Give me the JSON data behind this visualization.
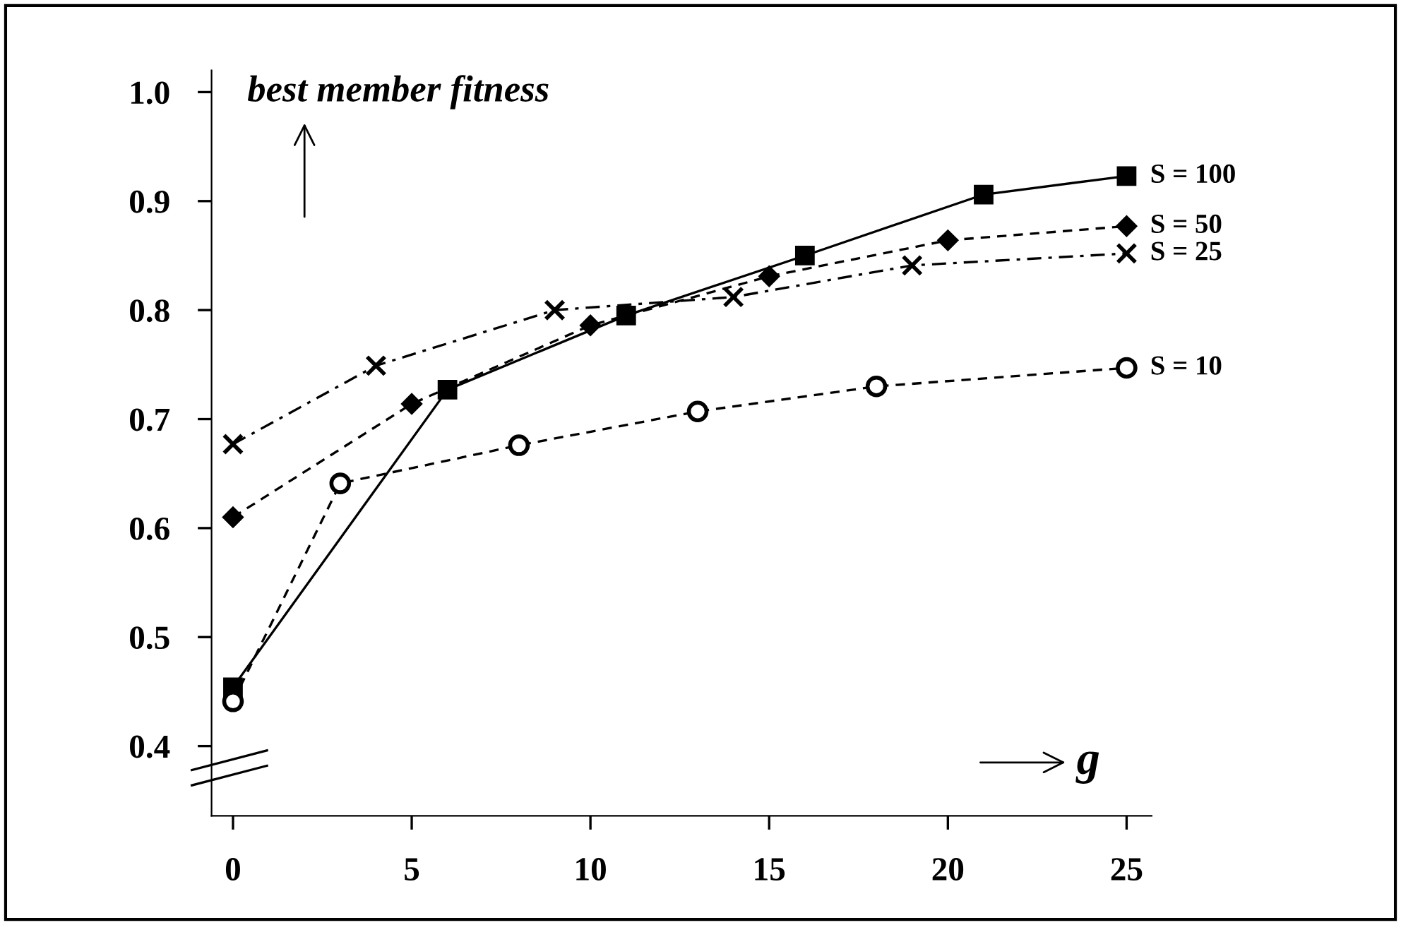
{
  "chart_data": {
    "type": "line",
    "ylabel": "best member fitness",
    "xlabel": "g",
    "xlim": [
      -0.6,
      25.7
    ],
    "ylim": [
      0.336,
      1.02
    ],
    "xticks": [
      0,
      5,
      10,
      15,
      20,
      25
    ],
    "yticks": [
      0.4,
      0.5,
      0.6,
      0.7,
      0.8,
      0.9,
      {
        "value": 1.0,
        "label": "1.0"
      }
    ],
    "grid": false,
    "legend": false,
    "series": [
      {
        "name": "S = 100",
        "color": "#000000",
        "marker": "square",
        "line_style": "solid",
        "x": [
          0,
          6,
          11,
          16,
          21,
          25
        ],
        "values": [
          0.454,
          0.727,
          0.795,
          0.85,
          0.906,
          0.923
        ]
      },
      {
        "name": "S = 50",
        "color": "#000000",
        "marker": "diamond",
        "line_style": "dashed",
        "x": [
          0,
          5,
          10,
          15,
          20,
          25
        ],
        "values": [
          0.61,
          0.714,
          0.786,
          0.831,
          0.864,
          0.877
        ]
      },
      {
        "name": "S = 25",
        "color": "#000000",
        "marker": "cross",
        "line_style": "dashdot",
        "x": [
          0,
          4,
          9,
          14,
          19,
          25
        ],
        "values": [
          0.677,
          0.749,
          0.8,
          0.812,
          0.841,
          0.852
        ]
      },
      {
        "name": "S = 10",
        "color": "#000000",
        "marker": "circle",
        "line_style": "dashed",
        "x": [
          0,
          3,
          8,
          13,
          18,
          25
        ],
        "values": [
          0.441,
          0.641,
          0.676,
          0.707,
          0.73,
          0.747
        ]
      }
    ]
  }
}
